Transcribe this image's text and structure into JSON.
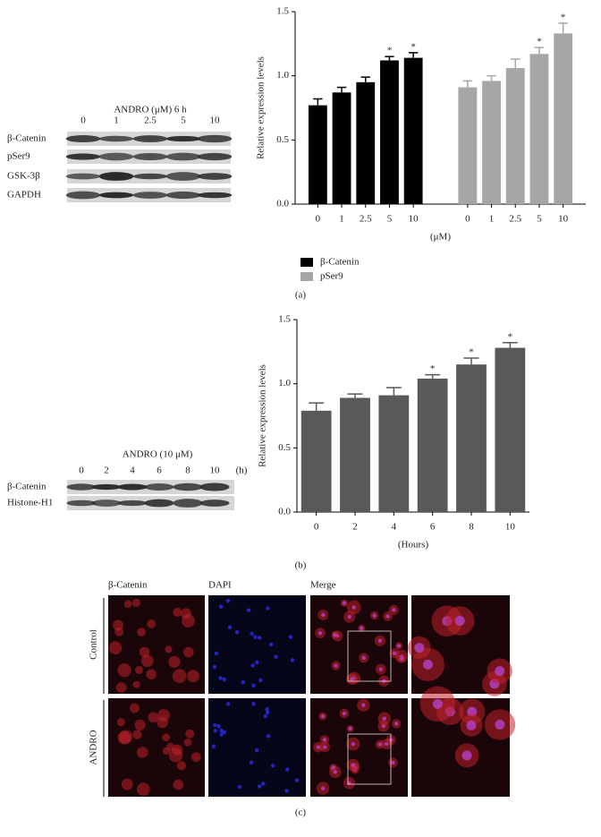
{
  "chart_data": [
    {
      "type": "bar",
      "y_label": "Relative expression levels",
      "x_label": "(μM)",
      "categories": [
        "0",
        "1",
        "2.5",
        "5",
        "10",
        "0",
        "1",
        "2.5",
        "5",
        "10"
      ],
      "series": [
        {
          "name": "β-Catenin",
          "color": "#000000",
          "values": [
            0.77,
            0.87,
            0.95,
            1.12,
            1.14,
            null,
            null,
            null,
            null,
            null
          ],
          "errors": [
            0.05,
            0.04,
            0.04,
            0.03,
            0.04,
            null,
            null,
            null,
            null,
            null
          ],
          "annotations": [
            null,
            null,
            null,
            "*",
            "*",
            null,
            null,
            null,
            null,
            null
          ]
        },
        {
          "name": "pSer9",
          "color": "#a6a6a6",
          "values": [
            null,
            null,
            null,
            null,
            null,
            0.91,
            0.96,
            1.06,
            1.17,
            1.33
          ],
          "errors": [
            null,
            null,
            null,
            null,
            null,
            0.05,
            0.04,
            0.07,
            0.05,
            0.08
          ],
          "annotations": [
            null,
            null,
            null,
            null,
            null,
            null,
            null,
            null,
            "*",
            "*"
          ]
        }
      ],
      "ylim": [
        0,
        1.5
      ],
      "yticks": [
        {
          "value": 0,
          "label": "0.0"
        },
        {
          "value": 0.5,
          "label": "0.5"
        },
        {
          "value": 1,
          "label": "1.0"
        },
        {
          "value": 1.5,
          "label": "1.5"
        }
      ],
      "legend": "bottom-left"
    },
    {
      "type": "bar",
      "y_label": "Relative expression levels",
      "x_label": "(Hours)",
      "categories": [
        "0",
        "2",
        "4",
        "6",
        "8",
        "10"
      ],
      "color": "#595959",
      "values": [
        0.79,
        0.89,
        0.91,
        1.04,
        1.15,
        1.28
      ],
      "errors": [
        0.06,
        0.03,
        0.06,
        0.03,
        0.05,
        0.04
      ],
      "annotations": [
        null,
        null,
        null,
        "*",
        "*",
        "*"
      ],
      "ylim": [
        0,
        1.5
      ],
      "yticks": [
        {
          "value": 0,
          "label": "0.0"
        },
        {
          "value": 0.5,
          "label": "0.5"
        },
        {
          "value": 1,
          "label": "1.0"
        },
        {
          "value": 1.5,
          "label": "1.5"
        }
      ]
    }
  ],
  "blot_a": {
    "title": "ANDRO (μM) 6 h",
    "lanes": [
      "0",
      "1",
      "2.5",
      "5",
      "10"
    ],
    "rows": [
      "β-Catenin",
      "pSer9",
      "GSK-3β",
      "GAPDH"
    ]
  },
  "blot_b": {
    "title": "ANDRO (10 μM)",
    "lanes": [
      "0",
      "2",
      "4",
      "6",
      "8",
      "10"
    ],
    "unit": "(h)",
    "rows": [
      "β-Catenin",
      "Histone-H1"
    ]
  },
  "micrographs": {
    "columns": [
      "β-Catenin",
      "DAPI",
      "Merge"
    ],
    "rows": [
      "Control",
      "ANDRO"
    ]
  },
  "panel_labels": [
    "(a)",
    "(b)",
    "(c)"
  ]
}
